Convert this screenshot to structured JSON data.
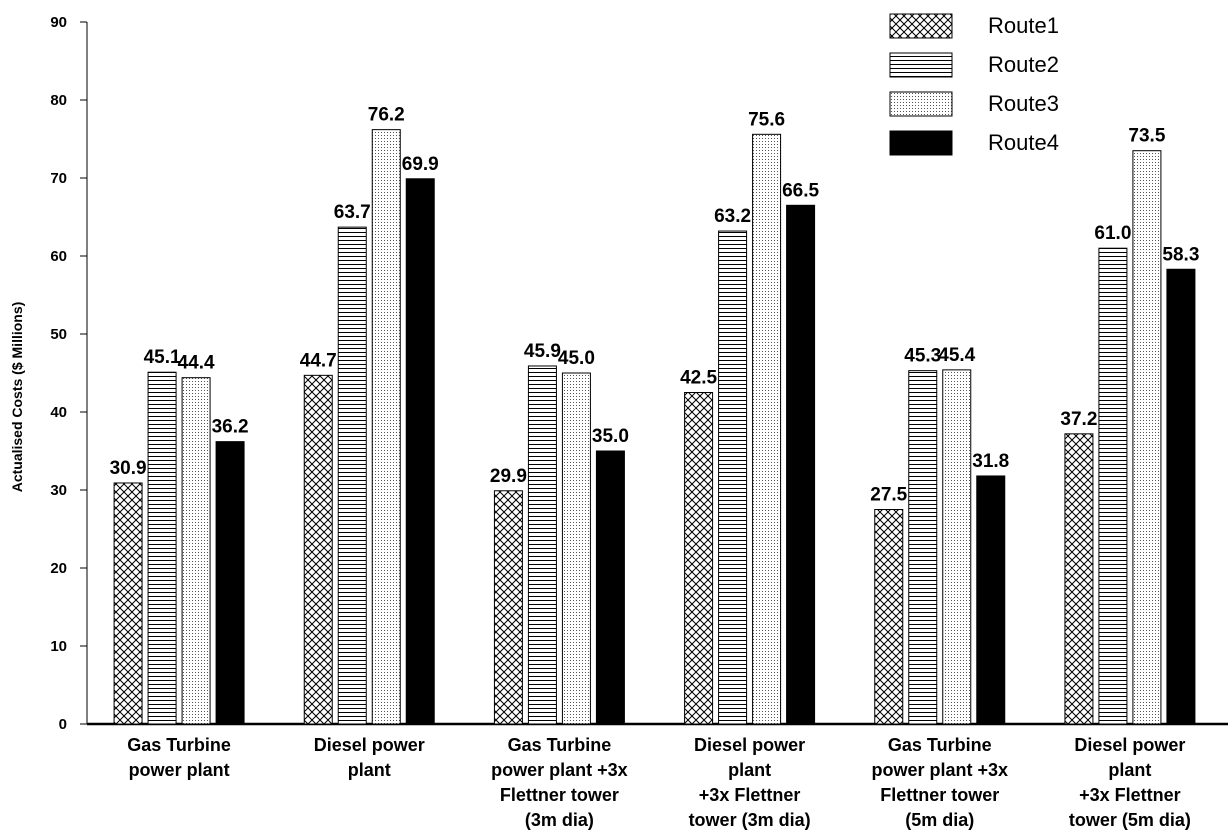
{
  "chart_data": {
    "type": "bar",
    "title": "",
    "xlabel": "",
    "ylabel": "Actualised Costs ($ Millions)",
    "ylim": [
      0,
      90
    ],
    "yticks": [
      0,
      10,
      20,
      30,
      40,
      50,
      60,
      70,
      80,
      90
    ],
    "grid": false,
    "legend_position": "top-right",
    "categories": [
      [
        "Gas Turbine",
        "power plant"
      ],
      [
        "Diesel power",
        "plant"
      ],
      [
        "Gas Turbine",
        "power plant +3x",
        "Flettner tower",
        "(3m dia)"
      ],
      [
        "Diesel power",
        "plant",
        "+3x Flettner",
        "tower (3m dia)"
      ],
      [
        "Gas Turbine",
        "power plant +3x",
        "Flettner tower",
        "(5m dia)"
      ],
      [
        "Diesel power",
        "plant",
        "+3x Flettner",
        "tower (5m dia)"
      ]
    ],
    "series": [
      {
        "name": "Route1",
        "pattern": "crosshatch",
        "values": [
          30.9,
          44.7,
          29.9,
          42.5,
          27.5,
          37.2
        ],
        "labels": [
          "30.9",
          "44.7",
          "29.9",
          "42.5",
          "27.5",
          "37.2"
        ]
      },
      {
        "name": "Route2",
        "pattern": "horizontal-lines",
        "values": [
          45.1,
          63.7,
          45.9,
          63.2,
          45.3,
          61.0
        ],
        "labels": [
          "45.1",
          "63.7",
          "45.9",
          "63.2",
          "45.3",
          "61.0"
        ]
      },
      {
        "name": "Route3",
        "pattern": "dots",
        "values": [
          44.4,
          76.2,
          45.0,
          75.6,
          45.4,
          73.5
        ],
        "labels": [
          "44.4",
          "76.2",
          "45.0",
          "75.6",
          "45.4",
          "73.5"
        ]
      },
      {
        "name": "Route4",
        "pattern": "solid",
        "values": [
          36.2,
          69.9,
          35.0,
          66.5,
          31.8,
          58.3
        ],
        "labels": [
          "36.2",
          "69.9",
          "35.0",
          "66.5",
          "31.8",
          "58.3"
        ]
      }
    ],
    "colors": {
      "stroke": "#000000",
      "background": "#ffffff",
      "solid": "#000000"
    }
  }
}
